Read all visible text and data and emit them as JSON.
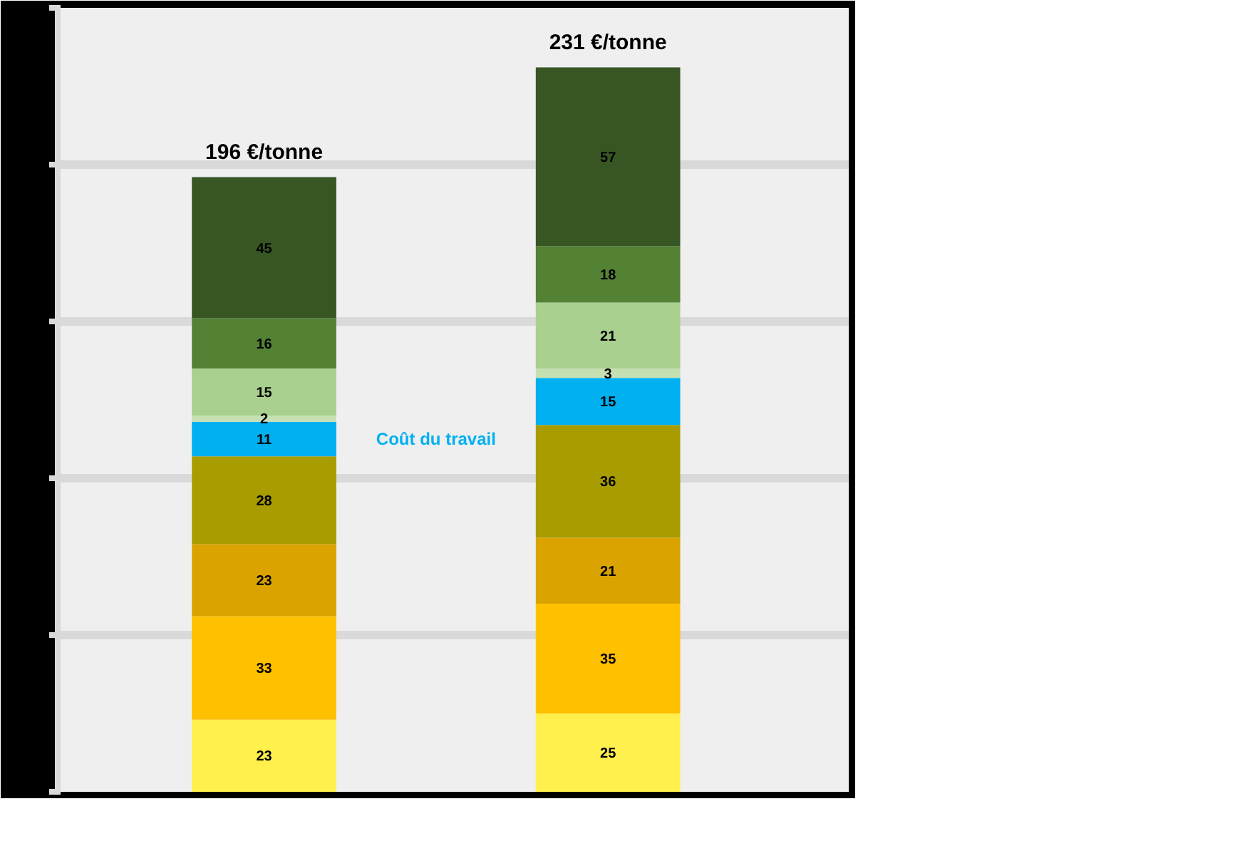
{
  "chart_data": {
    "type": "bar",
    "stacked": true,
    "categories": [
      null,
      null
    ],
    "series": [
      {
        "color": "#fff04d",
        "values": [
          23,
          25
        ]
      },
      {
        "color": "#ffc000",
        "values": [
          33,
          35
        ]
      },
      {
        "color": "#dba300",
        "values": [
          23,
          21
        ]
      },
      {
        "color": "#a89c00",
        "values": [
          28,
          36
        ]
      },
      {
        "color": "#00b0f0",
        "values": [
          11,
          15
        ]
      },
      {
        "color": "#c6e0b4",
        "values": [
          2,
          3
        ]
      },
      {
        "color": "#a9d08e",
        "values": [
          15,
          21
        ]
      },
      {
        "color": "#548235",
        "values": [
          16,
          18
        ]
      },
      {
        "color": "#375623",
        "values": [
          45,
          57
        ]
      }
    ],
    "ylim": [
      0,
      250
    ],
    "yticks": [
      {
        "value": 0,
        "label": null
      },
      {
        "value": 50,
        "label": null
      },
      {
        "value": 100,
        "label": null
      },
      {
        "value": 150,
        "label": null
      },
      {
        "value": 200,
        "label": null
      },
      {
        "value": 250,
        "label": null
      }
    ],
    "tick_labels": false,
    "grid": "y",
    "data_labels": true,
    "totals": [
      "196 €/tonne",
      "231 €/tonne"
    ],
    "annotations": [
      "Coût du travail"
    ]
  }
}
